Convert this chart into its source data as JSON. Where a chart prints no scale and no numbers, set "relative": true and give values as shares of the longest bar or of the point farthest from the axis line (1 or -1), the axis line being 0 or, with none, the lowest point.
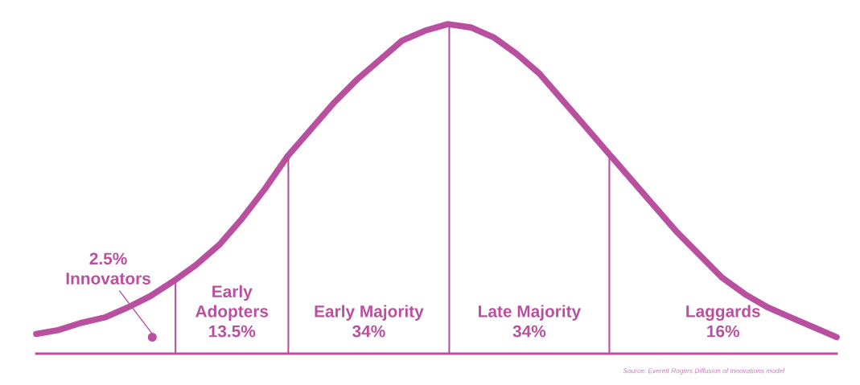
{
  "chart_data": {
    "type": "line",
    "relative": true,
    "categories": [
      null,
      null,
      null,
      null,
      null,
      null,
      null,
      null,
      null,
      null,
      null,
      null,
      null,
      null,
      null,
      null,
      null,
      null,
      null,
      null,
      null,
      null,
      null,
      null,
      null,
      null,
      null,
      null,
      null,
      null,
      null,
      null,
      null,
      null,
      null,
      null
    ],
    "series": [
      {
        "color": "#b8509f",
        "values": [
          0.06,
          0.072,
          0.094,
          0.11,
          0.14,
          0.175,
          0.22,
          0.27,
          0.33,
          0.41,
          0.5,
          0.6,
          0.68,
          0.76,
          0.83,
          0.89,
          0.95,
          0.98,
          1.0,
          0.99,
          0.96,
          0.91,
          0.85,
          0.77,
          0.69,
          0.61,
          0.53,
          0.45,
          0.37,
          0.3,
          0.23,
          0.18,
          0.14,
          0.11,
          0.08,
          0.05
        ]
      }
    ],
    "annotations": [
      "2.5%\nInnovators",
      "Early\nAdopters\n13.5%",
      "Early Majority\n34%",
      "Late Majority\n34%",
      "Laggards\n16%",
      "Source: Everett Rogers Diffusion of Innovations model"
    ],
    "marker": "none",
    "line_style": "solid",
    "legend": false
  }
}
